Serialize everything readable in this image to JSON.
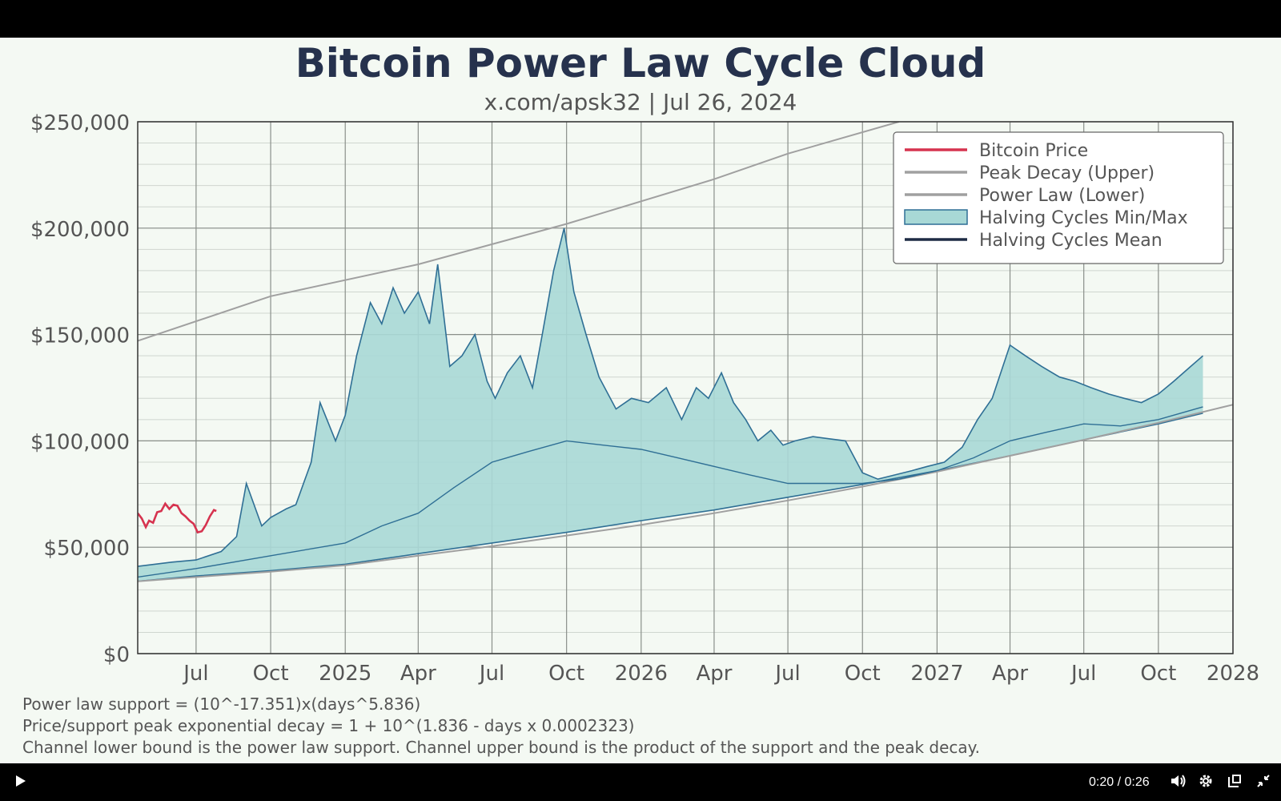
{
  "chart_data": {
    "type": "line",
    "title": "Bitcoin Power Law Cycle Cloud",
    "subtitle": "x.com/apsk32 | Jul 26, 2024",
    "y_ticks": [
      "$0",
      "$50,000",
      "$100,000",
      "$150,000",
      "$200,000",
      "$250,000"
    ],
    "y_tick_values": [
      0,
      50000,
      100000,
      150000,
      200000,
      250000
    ],
    "ylim": [
      0,
      250000
    ],
    "x_ticks": [
      "Jul",
      "Oct",
      "2025",
      "Apr",
      "Jul",
      "Oct",
      "2026",
      "Apr",
      "Jul",
      "Oct",
      "2027",
      "Apr",
      "Jul",
      "Oct",
      "2028"
    ],
    "x_tick_dates": [
      "2024-07-01",
      "2024-10-01",
      "2025-01-01",
      "2025-04-01",
      "2025-07-01",
      "2025-10-01",
      "2026-01-01",
      "2026-04-01",
      "2026-07-01",
      "2026-10-01",
      "2027-01-01",
      "2027-04-01",
      "2027-07-01",
      "2027-10-01",
      "2028-01-01"
    ],
    "xlim": [
      "2024-04-20",
      "2028-01-01"
    ],
    "grid": true,
    "legend_position": "top-right",
    "legend": [
      "Bitcoin Price",
      "Peak Decay (Upper)",
      "Power Law (Lower)",
      "Halving Cycles Min/Max",
      "Halving Cycles Mean"
    ],
    "colors": {
      "bitcoin_price": "#d6334f",
      "upper": "#a0a0a0",
      "lower": "#a0a0a0",
      "cloud_fill": "#a8d8d6",
      "cloud_edge": "#2f6f95",
      "mean": "#1e2b45"
    },
    "series": {
      "bitcoin_price": {
        "x": [
          "2024-04-20",
          "2024-04-25",
          "2024-04-30",
          "2024-05-04",
          "2024-05-09",
          "2024-05-14",
          "2024-05-19",
          "2024-05-24",
          "2024-05-29",
          "2024-06-03",
          "2024-06-08",
          "2024-06-13",
          "2024-06-18",
          "2024-06-23",
          "2024-06-28",
          "2024-07-03",
          "2024-07-08",
          "2024-07-13",
          "2024-07-18",
          "2024-07-23",
          "2024-07-26"
        ],
        "y": [
          66000,
          63500,
          59500,
          62500,
          61500,
          66500,
          67000,
          70500,
          68000,
          70000,
          69500,
          66000,
          64500,
          62500,
          61000,
          57000,
          57500,
          60500,
          64500,
          67500,
          67000
        ]
      },
      "upper": {
        "x": [
          "2024-04-20",
          "2024-10-01",
          "2025-04-01",
          "2025-10-01",
          "2026-04-01",
          "2026-07-01",
          "2026-11-15"
        ],
        "y": [
          147000,
          168000,
          183000,
          202000,
          223000,
          235000,
          250000
        ]
      },
      "lower": {
        "x": [
          "2024-04-20",
          "2024-10-01",
          "2025-01-01",
          "2025-04-01",
          "2025-07-01",
          "2025-10-01",
          "2026-01-01",
          "2026-04-01",
          "2026-07-01",
          "2026-10-01",
          "2027-01-01",
          "2027-04-01",
          "2027-07-01",
          "2027-10-01",
          "2028-01-01"
        ],
        "y": [
          34000,
          38500,
          41500,
          46000,
          50500,
          55500,
          60500,
          66000,
          72000,
          78500,
          85500,
          93000,
          100500,
          108500,
          117000
        ]
      },
      "cloud_max": {
        "x": [
          "2024-04-20",
          "2024-06-01",
          "2024-07-01",
          "2024-08-01",
          "2024-08-20",
          "2024-09-01",
          "2024-09-20",
          "2024-10-01",
          "2024-10-20",
          "2024-11-01",
          "2024-11-20",
          "2024-12-01",
          "2024-12-20",
          "2025-01-01",
          "2025-01-15",
          "2025-02-01",
          "2025-02-15",
          "2025-03-01",
          "2025-03-15",
          "2025-04-01",
          "2025-04-15",
          "2025-04-25",
          "2025-05-10",
          "2025-05-25",
          "2025-06-10",
          "2025-06-25",
          "2025-07-05",
          "2025-07-20",
          "2025-08-05",
          "2025-08-20",
          "2025-09-01",
          "2025-09-15",
          "2025-09-28",
          "2025-10-10",
          "2025-10-25",
          "2025-11-10",
          "2025-12-01",
          "2025-12-20",
          "2026-01-10",
          "2026-02-01",
          "2026-02-20",
          "2026-03-10",
          "2026-03-25",
          "2026-04-10",
          "2026-04-25",
          "2026-05-10",
          "2026-05-25",
          "2026-06-10",
          "2026-06-25",
          "2026-07-10",
          "2026-08-01",
          "2026-08-20",
          "2026-09-10",
          "2026-10-01",
          "2026-10-20",
          "2026-11-10",
          "2026-12-01",
          "2026-12-20",
          "2027-01-10",
          "2027-02-01",
          "2027-02-20",
          "2027-03-10",
          "2027-04-01",
          "2027-04-20",
          "2027-05-10",
          "2027-06-01",
          "2027-06-20",
          "2027-07-10",
          "2027-08-01",
          "2027-08-20",
          "2027-09-10",
          "2027-10-01",
          "2027-10-20",
          "2027-11-10",
          "2027-11-25"
        ],
        "y": [
          41000,
          43000,
          44000,
          48000,
          55000,
          80000,
          60000,
          64000,
          68000,
          70000,
          90000,
          118000,
          100000,
          112000,
          140000,
          165000,
          155000,
          172000,
          160000,
          170000,
          155000,
          183000,
          135000,
          140000,
          150000,
          128000,
          120000,
          132000,
          140000,
          125000,
          150000,
          180000,
          200000,
          170000,
          150000,
          130000,
          115000,
          120000,
          118000,
          125000,
          110000,
          125000,
          120000,
          132000,
          118000,
          110000,
          100000,
          105000,
          98000,
          100000,
          102000,
          101000,
          100000,
          85000,
          82000,
          84000,
          86000,
          88000,
          90000,
          97000,
          110000,
          120000,
          145000,
          140000,
          135000,
          130000,
          128000,
          125000,
          122000,
          120000,
          118000,
          122000,
          128000,
          135000,
          140000
        ],
        "legend": "Halving Cycles Min/Max"
      },
      "cloud_min": {
        "x": [
          "2024-04-20",
          "2024-07-01",
          "2024-10-01",
          "2025-01-01",
          "2025-04-01",
          "2025-07-01",
          "2025-10-01",
          "2026-01-01",
          "2026-04-01",
          "2026-07-01",
          "2026-10-01",
          "2027-01-01",
          "2027-04-01",
          "2027-07-01",
          "2027-10-01",
          "2027-11-25"
        ],
        "y": [
          34000,
          36500,
          39000,
          42000,
          47000,
          52000,
          57000,
          62500,
          67500,
          73500,
          79500,
          86000,
          93000,
          100500,
          108000,
          113000
        ]
      },
      "cloud_mean": {
        "x": [
          "2024-04-20",
          "2024-07-01",
          "2024-10-01",
          "2025-01-01",
          "2025-02-15",
          "2025-04-01",
          "2025-05-15",
          "2025-07-01",
          "2025-08-15",
          "2025-10-01",
          "2025-11-15",
          "2026-01-01",
          "2026-02-15",
          "2026-04-01",
          "2026-05-15",
          "2026-07-01",
          "2026-08-15",
          "2026-10-01",
          "2026-11-15",
          "2027-01-01",
          "2027-02-15",
          "2027-04-01",
          "2027-05-15",
          "2027-07-01",
          "2027-08-15",
          "2027-10-01",
          "2027-11-25"
        ],
        "y": [
          36000,
          40000,
          46000,
          52000,
          60000,
          66000,
          78000,
          90000,
          95000,
          100000,
          98000,
          96000,
          92000,
          88000,
          84000,
          80000,
          80000,
          80000,
          82000,
          86000,
          92000,
          100000,
          104000,
          108000,
          107000,
          110000,
          116000
        ]
      }
    }
  },
  "notes": [
    "Power law support = (10^-17.351)x(days^5.836)",
    "Price/support peak exponential decay = 1 + 10^(1.836 - days x 0.0002323)",
    "Channel lower bound is the power law support. Channel upper bound is the product of the support and the peak decay."
  ],
  "player": {
    "time": "0:20 / 0:26",
    "icons": [
      "play-icon",
      "volume-icon",
      "gear-icon",
      "miniplayer-icon",
      "exit-fullscreen-icon"
    ]
  }
}
